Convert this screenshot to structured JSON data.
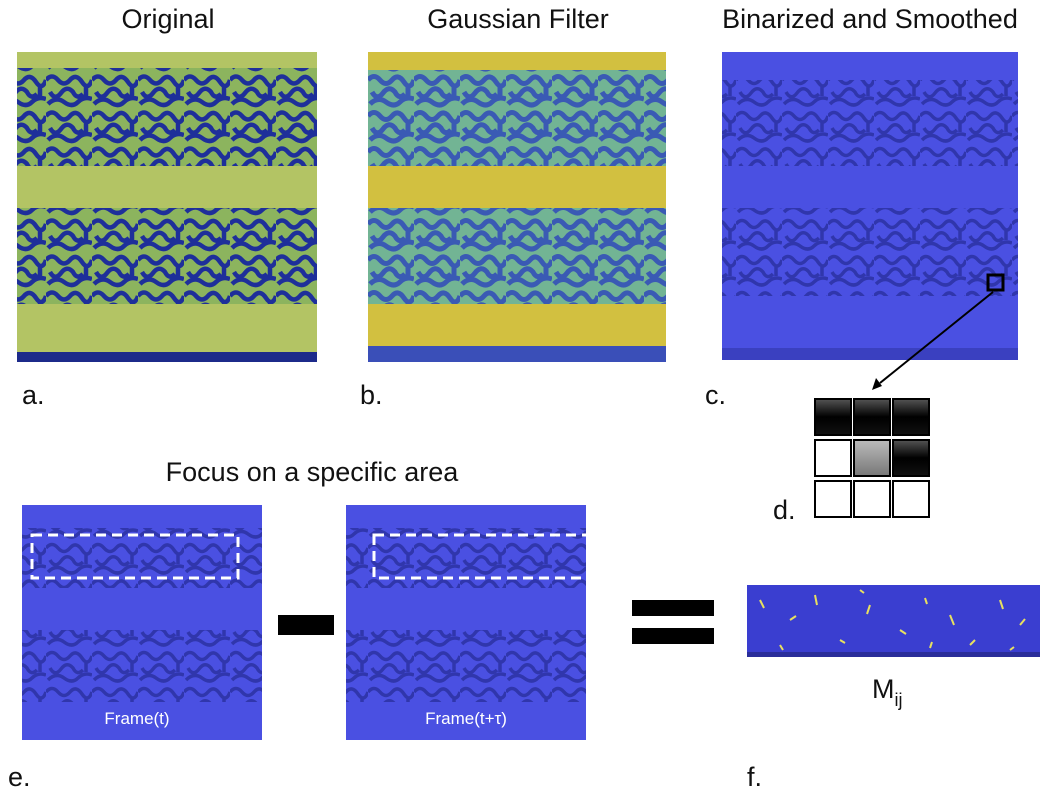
{
  "panels": [
    {
      "title": "Original",
      "label": "a."
    },
    {
      "title": "Gaussian Filter",
      "label": "b."
    },
    {
      "title": "Binarized and Smoothed",
      "label": "c."
    }
  ],
  "kernel": {
    "label": "d."
  },
  "focus": {
    "title": "Focus on a specific area",
    "label": "e.",
    "frames": [
      "Frame(t)",
      "Frame(t+τ)"
    ]
  },
  "result": {
    "label": "f.",
    "symbol": "M",
    "subscript": "ij"
  }
}
